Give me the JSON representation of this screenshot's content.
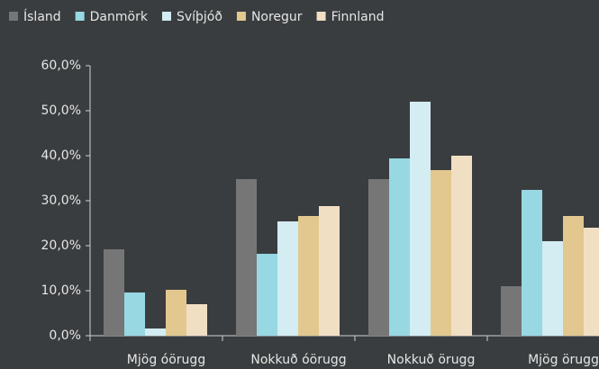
{
  "chart_data": {
    "type": "bar",
    "categories": [
      "Mjög óörugg",
      "Nokkuð óörugg",
      "Nokkuð örugg",
      "Mjög örugg"
    ],
    "series": [
      {
        "name": "Ísland",
        "color": "#767676",
        "values": [
          19.2,
          34.8,
          34.8,
          11
        ]
      },
      {
        "name": "Danmörk",
        "color": "#97d8e3",
        "values": [
          9.6,
          18.2,
          39.4,
          32.4
        ]
      },
      {
        "name": "Svíþjóð",
        "color": "#d3edf2",
        "values": [
          1.6,
          25.4,
          52,
          21
        ]
      },
      {
        "name": "Noregur",
        "color": "#e2c88f",
        "values": [
          10.2,
          26.6,
          36.8,
          26.6
        ]
      },
      {
        "name": "Finnland",
        "color": "#f1dfc4",
        "values": [
          7,
          28.8,
          40,
          24
        ]
      }
    ],
    "ylim": [
      0,
      60
    ],
    "yticks": [
      {
        "value": 0,
        "label": "0,0%"
      },
      {
        "value": 10,
        "label": "10,0%"
      },
      {
        "value": 20,
        "label": "20,0%"
      },
      {
        "value": 30,
        "label": "30,0%"
      },
      {
        "value": 40,
        "label": "40,0%"
      },
      {
        "value": 50,
        "label": "50,0%"
      },
      {
        "value": 60,
        "label": "60,0%"
      }
    ],
    "legend": "top-left"
  }
}
